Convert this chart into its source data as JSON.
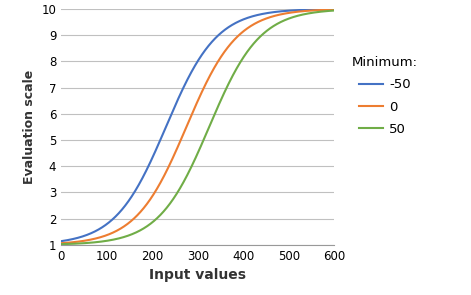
{
  "title": "",
  "xlabel": "Input values",
  "ylabel": "Evaluation scale",
  "xlim": [
    0,
    600
  ],
  "ylim": [
    1,
    10
  ],
  "xticks": [
    0,
    100,
    200,
    300,
    400,
    500,
    600
  ],
  "yticks": [
    1,
    2,
    3,
    4,
    5,
    6,
    7,
    8,
    9,
    10
  ],
  "series": [
    {
      "label": "-50",
      "color": "#4472C4",
      "x0": 230
    },
    {
      "label": "0",
      "color": "#ED7D31",
      "x0": 275
    },
    {
      "label": "50",
      "color": "#70AD47",
      "x0": 325
    }
  ],
  "legend_title": "Minimum:",
  "background_color": "#ffffff",
  "grid_color": "#C0C0C0",
  "max_value": 10,
  "min_value": 1,
  "growth_rate": 0.018
}
